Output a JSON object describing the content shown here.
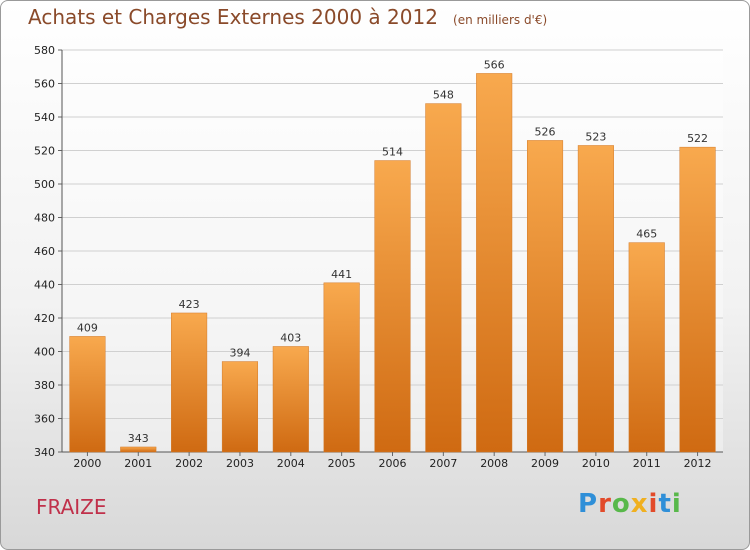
{
  "chart_data": {
    "type": "bar",
    "title": "Achats et Charges Externes 2000 à 2012",
    "subtitle": "(en milliers d'€)",
    "categories": [
      "2000",
      "2001",
      "2002",
      "2003",
      "2004",
      "2005",
      "2006",
      "2007",
      "2008",
      "2009",
      "2010",
      "2011",
      "2012"
    ],
    "values": [
      409,
      343,
      423,
      394,
      403,
      441,
      514,
      548,
      566,
      526,
      523,
      465,
      522
    ],
    "ylim": [
      340,
      580
    ],
    "yticks": [
      340,
      360,
      380,
      400,
      420,
      440,
      460,
      480,
      500,
      520,
      540,
      560,
      580
    ],
    "grid": true,
    "bar_color": "#f0973a",
    "xlabel": "",
    "ylabel": ""
  },
  "commune": "FRAIZE",
  "logo": {
    "text": "Proxiti",
    "letter_colors": [
      "#2f8fd8",
      "#e24a2a",
      "#58b84a",
      "#f0b020",
      "#e24a2a",
      "#2f8fd8",
      "#58b84a"
    ]
  }
}
